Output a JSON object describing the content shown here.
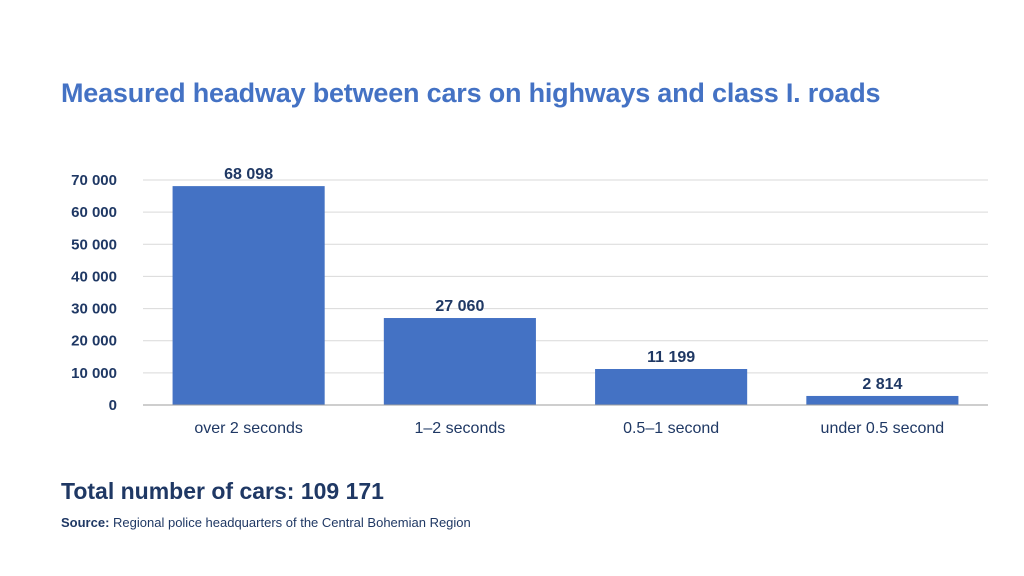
{
  "chart_data": {
    "type": "bar",
    "title": "Measured headway between cars on highways and class I. roads",
    "categories": [
      "over 2 seconds",
      "1–2 seconds",
      "0.5–1 second",
      "under 0.5 second"
    ],
    "values": [
      68098,
      27060,
      11199,
      2814
    ],
    "data_labels": [
      "68 098",
      "27 060",
      "11 199",
      "2 814"
    ],
    "ylim": [
      0,
      70000
    ],
    "yticks": [
      0,
      10000,
      20000,
      30000,
      40000,
      50000,
      60000,
      70000
    ],
    "ytick_labels": [
      "0",
      "10 000",
      "20 000",
      "30 000",
      "40 000",
      "50 000",
      "60 000",
      "70 000"
    ],
    "xlabel": "",
    "ylabel": "",
    "grid": true,
    "bar_color": "#4472c4"
  },
  "footer": {
    "total": "Total number of cars: 109 171",
    "source_label": "Source:",
    "source_text": "Regional police headquarters of the Central Bohemian Region"
  },
  "colors": {
    "title": "#4472c4",
    "text": "#1f3864",
    "grid": "#d9d9d9",
    "axis": "#9e9e9e"
  }
}
